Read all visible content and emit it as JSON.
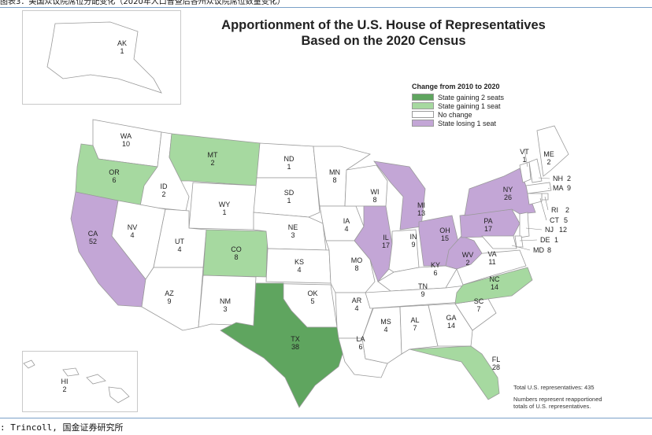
{
  "header": {
    "caption": "图表3：美国众议院席位分配变化（2020年人口普查后各州众议院席位数量变化）",
    "title_line1": "Apportionment of the U.S. House of Representatives",
    "title_line2": "Based on the 2020 Census"
  },
  "legend": {
    "title": "Change from 2010 to 2020",
    "items": [
      {
        "label": "State gaining 2 seats",
        "color": "#5fa55f"
      },
      {
        "label": "State gaining 1 seat",
        "color": "#a6d9a0"
      },
      {
        "label": "No change",
        "color": "#ffffff"
      },
      {
        "label": "State losing 1 seat",
        "color": "#c3a6d6"
      }
    ]
  },
  "notes": {
    "total": "Total U.S. representatives: 435",
    "explain_line1": "Numbers represent reapportioned",
    "explain_line2": "totals of U.S. representatives."
  },
  "source": ": Trincoll, 国金证券研究所",
  "map_data": {
    "states": [
      {
        "abbr": "AK",
        "seats": "1",
        "status": "none"
      },
      {
        "abbr": "HI",
        "seats": "2",
        "status": "none"
      },
      {
        "abbr": "WA",
        "seats": "10",
        "status": "none"
      },
      {
        "abbr": "OR",
        "seats": "6",
        "status": "gain1"
      },
      {
        "abbr": "CA",
        "seats": "52",
        "status": "lose1"
      },
      {
        "abbr": "ID",
        "seats": "2",
        "status": "none"
      },
      {
        "abbr": "NV",
        "seats": "4",
        "status": "none"
      },
      {
        "abbr": "MT",
        "seats": "2",
        "status": "gain1"
      },
      {
        "abbr": "WY",
        "seats": "1",
        "status": "none"
      },
      {
        "abbr": "UT",
        "seats": "4",
        "status": "none"
      },
      {
        "abbr": "AZ",
        "seats": "9",
        "status": "none"
      },
      {
        "abbr": "CO",
        "seats": "8",
        "status": "gain1"
      },
      {
        "abbr": "NM",
        "seats": "3",
        "status": "none"
      },
      {
        "abbr": "ND",
        "seats": "1",
        "status": "none"
      },
      {
        "abbr": "SD",
        "seats": "1",
        "status": "none"
      },
      {
        "abbr": "NE",
        "seats": "3",
        "status": "none"
      },
      {
        "abbr": "KS",
        "seats": "4",
        "status": "none"
      },
      {
        "abbr": "OK",
        "seats": "5",
        "status": "none"
      },
      {
        "abbr": "TX",
        "seats": "38",
        "status": "gain2"
      },
      {
        "abbr": "MN",
        "seats": "8",
        "status": "none"
      },
      {
        "abbr": "IA",
        "seats": "4",
        "status": "none"
      },
      {
        "abbr": "MO",
        "seats": "8",
        "status": "none"
      },
      {
        "abbr": "AR",
        "seats": "4",
        "status": "none"
      },
      {
        "abbr": "LA",
        "seats": "6",
        "status": "none"
      },
      {
        "abbr": "WI",
        "seats": "8",
        "status": "none"
      },
      {
        "abbr": "IL",
        "seats": "17",
        "status": "lose1"
      },
      {
        "abbr": "MI",
        "seats": "13",
        "status": "lose1"
      },
      {
        "abbr": "IN",
        "seats": "9",
        "status": "none"
      },
      {
        "abbr": "OH",
        "seats": "15",
        "status": "lose1"
      },
      {
        "abbr": "KY",
        "seats": "6",
        "status": "none"
      },
      {
        "abbr": "TN",
        "seats": "9",
        "status": "none"
      },
      {
        "abbr": "MS",
        "seats": "4",
        "status": "none"
      },
      {
        "abbr": "AL",
        "seats": "7",
        "status": "none"
      },
      {
        "abbr": "GA",
        "seats": "14",
        "status": "none"
      },
      {
        "abbr": "FL",
        "seats": "28",
        "status": "gain1"
      },
      {
        "abbr": "SC",
        "seats": "7",
        "status": "none"
      },
      {
        "abbr": "NC",
        "seats": "14",
        "status": "gain1"
      },
      {
        "abbr": "VA",
        "seats": "11",
        "status": "none"
      },
      {
        "abbr": "WV",
        "seats": "2",
        "status": "lose1"
      },
      {
        "abbr": "PA",
        "seats": "17",
        "status": "lose1"
      },
      {
        "abbr": "NY",
        "seats": "26",
        "status": "lose1"
      },
      {
        "abbr": "VT",
        "seats": "1",
        "status": "none"
      },
      {
        "abbr": "ME",
        "seats": "2",
        "status": "none"
      },
      {
        "abbr": "NH",
        "seats": "2",
        "status": "none"
      },
      {
        "abbr": "MA",
        "seats": "9",
        "status": "none"
      },
      {
        "abbr": "RI",
        "seats": "2",
        "status": "none"
      },
      {
        "abbr": "CT",
        "seats": "5",
        "status": "none"
      },
      {
        "abbr": "NJ",
        "seats": "12",
        "status": "none"
      },
      {
        "abbr": "DE",
        "seats": "1",
        "status": "none"
      },
      {
        "abbr": "MD",
        "seats": "8",
        "status": "none"
      }
    ],
    "status_colors": {
      "gain2": "#5fa55f",
      "gain1": "#a6d9a0",
      "none": "#ffffff",
      "lose1": "#c3a6d6"
    }
  }
}
